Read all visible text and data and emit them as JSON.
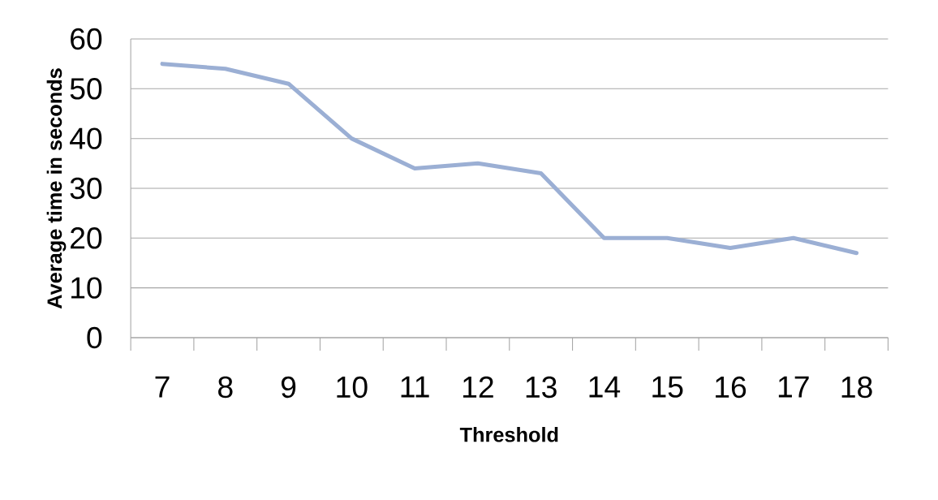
{
  "chart_data": {
    "type": "line",
    "xlabel": "Threshold",
    "ylabel": "Average time in seconds",
    "categories": [
      "7",
      "8",
      "9",
      "10",
      "11",
      "12",
      "13",
      "14",
      "15",
      "16",
      "17",
      "18"
    ],
    "series": [
      {
        "color": "#9bafd4",
        "values": [
          55,
          54,
          51,
          40,
          34,
          35,
          33,
          20,
          20,
          18,
          20,
          17
        ]
      }
    ],
    "ylim": [
      0,
      60
    ],
    "yticks": [
      0,
      10,
      20,
      30,
      40,
      50,
      60
    ],
    "grid": "y",
    "line_style": "solid"
  }
}
